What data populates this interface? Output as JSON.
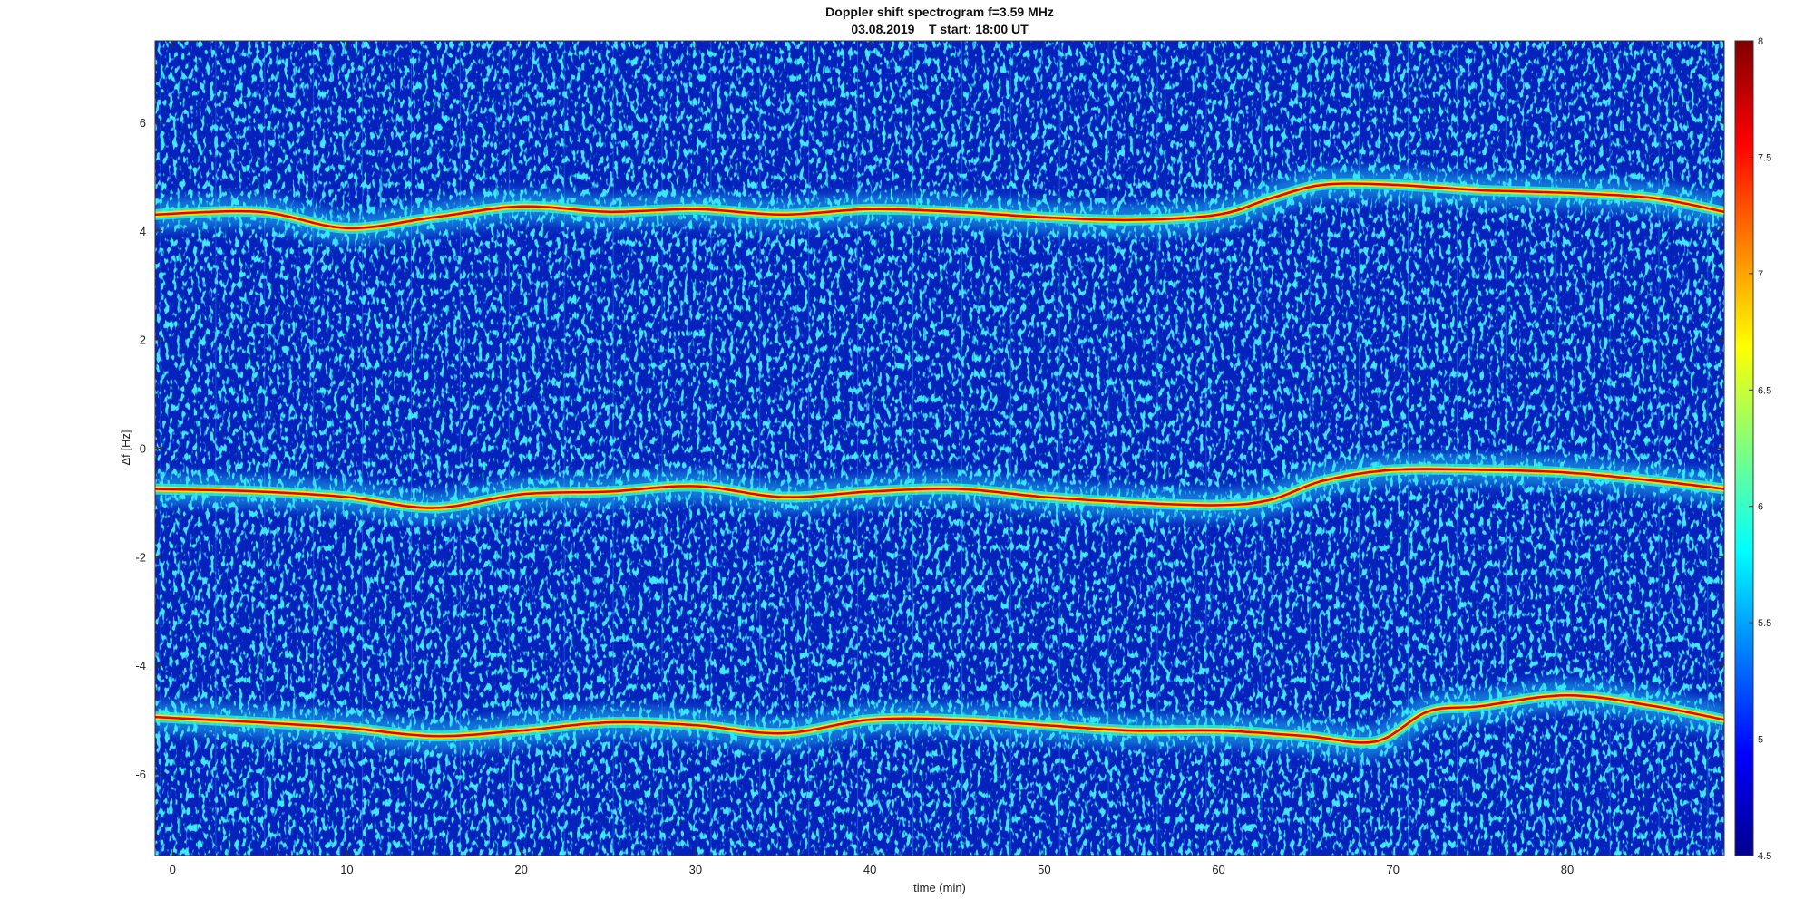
{
  "chart_data": {
    "type": "heatmap",
    "title": "Doppler shift spectrogram f=3.59 MHz",
    "subtitle": "03.08.2019    T start: 18:00 UT",
    "xlabel": "time (min)",
    "ylabel": "Δf [Hz]",
    "xlim": [
      -1,
      89
    ],
    "ylim": [
      -7.5,
      7.5
    ],
    "x_ticks": [
      0,
      10,
      20,
      30,
      40,
      50,
      60,
      70,
      80
    ],
    "y_ticks": [
      6,
      4,
      2,
      0,
      -2,
      -4,
      -6
    ],
    "colorbar": {
      "colormap": "jet",
      "range": [
        4.5,
        8
      ],
      "ticks": [
        8,
        7.5,
        7,
        6.5,
        6,
        5.5,
        5,
        4.5
      ]
    },
    "series": [
      {
        "x": [
          -1,
          5,
          10,
          15,
          20,
          25,
          30,
          35,
          40,
          45,
          50,
          55,
          60,
          63,
          66,
          70,
          75,
          80,
          85,
          89
        ],
        "y": [
          4.3,
          4.35,
          4.05,
          4.25,
          4.45,
          4.35,
          4.4,
          4.3,
          4.4,
          4.35,
          4.25,
          4.2,
          4.3,
          4.6,
          4.85,
          4.85,
          4.75,
          4.7,
          4.6,
          4.35
        ]
      },
      {
        "x": [
          -1,
          5,
          10,
          15,
          20,
          25,
          30,
          35,
          40,
          45,
          50,
          55,
          60,
          63,
          66,
          70,
          75,
          80,
          85,
          89
        ],
        "y": [
          -0.75,
          -0.8,
          -0.9,
          -1.1,
          -0.85,
          -0.8,
          -0.7,
          -0.9,
          -0.8,
          -0.75,
          -0.9,
          -1.0,
          -1.05,
          -0.95,
          -0.6,
          -0.4,
          -0.4,
          -0.45,
          -0.6,
          -0.75
        ]
      },
      {
        "x": [
          -1,
          5,
          10,
          15,
          20,
          25,
          30,
          35,
          40,
          45,
          50,
          55,
          60,
          65,
          69,
          72,
          75,
          80,
          85,
          89
        ],
        "y": [
          -4.95,
          -5.05,
          -5.15,
          -5.3,
          -5.2,
          -5.05,
          -5.1,
          -5.25,
          -5.0,
          -5.0,
          -5.1,
          -5.2,
          -5.2,
          -5.3,
          -5.4,
          -4.85,
          -4.75,
          -4.55,
          -4.75,
          -5.0
        ]
      }
    ],
    "grid": false,
    "legend": "none"
  }
}
